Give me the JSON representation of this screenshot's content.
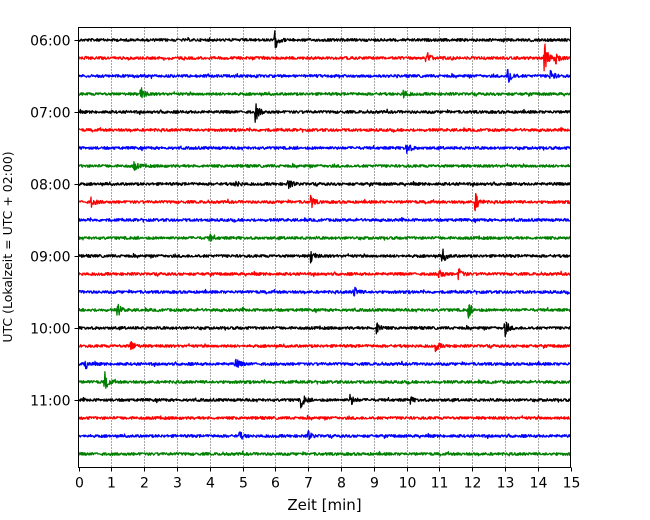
{
  "chart_data": {
    "type": "line",
    "title": "",
    "xlabel": "Zeit  [min]",
    "ylabel": "UTC (Lokalzeit = UTC + 02:00)",
    "xlim": [
      0,
      15
    ],
    "x_ticks": [
      "0",
      "1",
      "2",
      "3",
      "4",
      "5",
      "6",
      "7",
      "8",
      "9",
      "10",
      "11",
      "12",
      "13",
      "14",
      "15"
    ],
    "y_ticks": [
      {
        "row": 0,
        "label": "06:00"
      },
      {
        "row": 4,
        "label": "07:00"
      },
      {
        "row": 8,
        "label": "08:00"
      },
      {
        "row": 12,
        "label": "09:00"
      },
      {
        "row": 16,
        "label": "10:00"
      },
      {
        "row": 20,
        "label": "11:00"
      }
    ],
    "grid": "vertical dotted at each minute",
    "legend": "none",
    "color_cycle": [
      "#000000",
      "#ff0000",
      "#0000ff",
      "#008000"
    ],
    "traces": [
      {
        "start": "06:00",
        "events": [
          {
            "t": 6.0,
            "amp": 0.45
          }
        ]
      },
      {
        "start": "06:15",
        "events": [
          {
            "t": 10.6,
            "amp": 0.45
          },
          {
            "t": 14.2,
            "amp": 0.9
          },
          {
            "t": 14.5,
            "amp": 0.7
          }
        ]
      },
      {
        "start": "06:30",
        "events": [
          {
            "t": 13.1,
            "amp": 0.6
          },
          {
            "t": 14.4,
            "amp": 0.3
          }
        ]
      },
      {
        "start": "06:45",
        "events": [
          {
            "t": 1.9,
            "amp": 0.4
          },
          {
            "t": 9.9,
            "amp": 0.25
          }
        ]
      },
      {
        "start": "07:00",
        "events": [
          {
            "t": 5.4,
            "amp": 0.5
          }
        ]
      },
      {
        "start": "07:15",
        "events": []
      },
      {
        "start": "07:30",
        "events": [
          {
            "t": 10.0,
            "amp": 0.35
          }
        ]
      },
      {
        "start": "07:45",
        "events": [
          {
            "t": 1.7,
            "amp": 0.25
          }
        ]
      },
      {
        "start": "08:00",
        "events": [
          {
            "t": 4.8,
            "amp": 0.2
          },
          {
            "t": 6.4,
            "amp": 0.3
          }
        ]
      },
      {
        "start": "08:15",
        "events": [
          {
            "t": 0.4,
            "amp": 0.25
          },
          {
            "t": 7.1,
            "amp": 0.3
          },
          {
            "t": 12.1,
            "amp": 0.5
          }
        ]
      },
      {
        "start": "08:30",
        "events": []
      },
      {
        "start": "08:45",
        "events": [
          {
            "t": 4.0,
            "amp": 0.2
          }
        ]
      },
      {
        "start": "09:00",
        "events": [
          {
            "t": 7.1,
            "amp": 0.35
          },
          {
            "t": 11.1,
            "amp": 0.4
          }
        ]
      },
      {
        "start": "09:15",
        "events": [
          {
            "t": 11.0,
            "amp": 0.3
          },
          {
            "t": 11.6,
            "amp": 0.3
          }
        ]
      },
      {
        "start": "09:30",
        "events": [
          {
            "t": 8.4,
            "amp": 0.3
          }
        ]
      },
      {
        "start": "09:45",
        "events": [
          {
            "t": 1.2,
            "amp": 0.3
          },
          {
            "t": 11.9,
            "amp": 0.4
          }
        ]
      },
      {
        "start": "10:00",
        "events": [
          {
            "t": 9.1,
            "amp": 0.35
          },
          {
            "t": 13.0,
            "amp": 0.45
          }
        ]
      },
      {
        "start": "10:15",
        "events": [
          {
            "t": 1.6,
            "amp": 0.3
          },
          {
            "t": 10.9,
            "amp": 0.25
          }
        ]
      },
      {
        "start": "10:30",
        "events": [
          {
            "t": 0.2,
            "amp": 0.3
          },
          {
            "t": 4.8,
            "amp": 0.3
          }
        ]
      },
      {
        "start": "10:45",
        "events": [
          {
            "t": 0.8,
            "amp": 0.55
          }
        ]
      },
      {
        "start": "11:00",
        "events": [
          {
            "t": 6.8,
            "amp": 0.4
          },
          {
            "t": 8.3,
            "amp": 0.3
          },
          {
            "t": 10.1,
            "amp": 0.2
          }
        ]
      },
      {
        "start": "11:15",
        "events": []
      },
      {
        "start": "11:30",
        "events": [
          {
            "t": 4.9,
            "amp": 0.25
          },
          {
            "t": 7.0,
            "amp": 0.25
          }
        ]
      },
      {
        "start": "11:45",
        "events": []
      }
    ]
  }
}
